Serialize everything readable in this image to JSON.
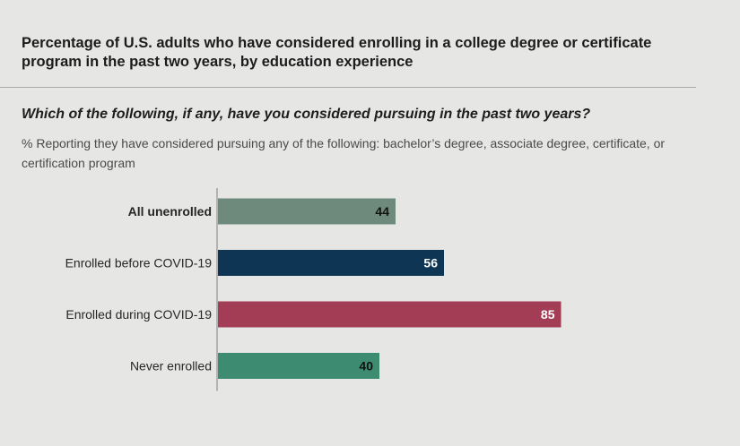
{
  "header": {
    "title": "Percentage of U.S. adults who have considered enrolling in a college degree or certificate program in the past two years, by education experience",
    "question": "Which of the following, if any, have you considered pursuing in the past two years?",
    "subtitle": "% Reporting they have considered pursuing any of the following: bachelor’s degree, associate degree, certificate, or certification program"
  },
  "chart_data": {
    "type": "bar",
    "orientation": "horizontal",
    "categories": [
      "All unenrolled",
      "Enrolled before COVID-19",
      "Enrolled during COVID-19",
      "Never enrolled"
    ],
    "values": [
      44,
      56,
      85,
      40
    ],
    "bold_categories": [
      "All unenrolled"
    ],
    "colors": [
      "#6e8a7c",
      "#0f3554",
      "#a33d56",
      "#3d8b70"
    ],
    "value_label_colors": [
      "#111111",
      "#ffffff",
      "#ffffff",
      "#111111"
    ],
    "xlim": [
      0,
      100
    ],
    "grid": false,
    "legend": "none"
  }
}
